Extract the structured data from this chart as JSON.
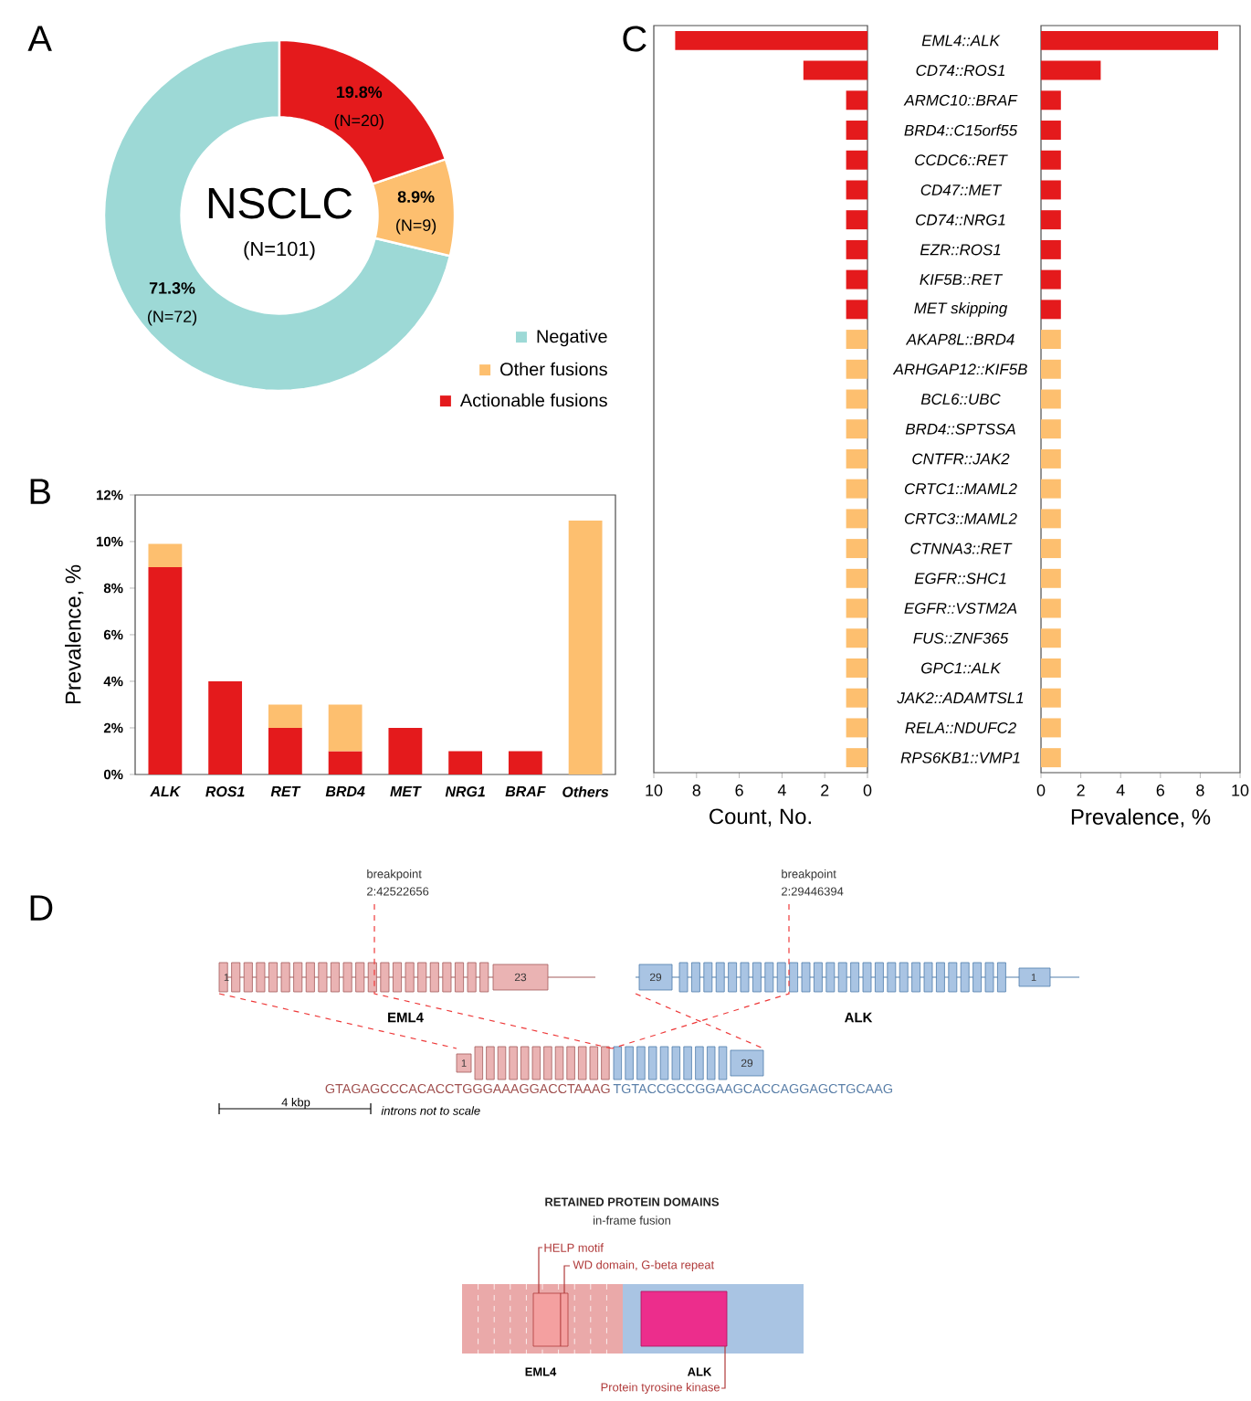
{
  "chart_data": [
    {
      "type": "donut",
      "title": "NSCLC",
      "subtitle": "(N=101)",
      "categories": [
        "Negative",
        "Other fusions",
        "Actionable fusions"
      ],
      "values": [
        71.3,
        8.9,
        19.8
      ],
      "colors": [
        "#9dd9d6",
        "#fdbf6f",
        "#e41a1c"
      ],
      "value_labels": [
        "71.3%",
        "8.9%",
        "19.8%"
      ],
      "legend": "bottom right",
      "annotations": [
        "A",
        "(N=72)",
        "(N=9)",
        "(N=20)"
      ]
    },
    {
      "type": "bar",
      "stacked": true,
      "categories": [
        "ALK",
        "ROS1",
        "RET",
        "BRD4",
        "MET",
        "NRG1",
        "BRAF",
        "Others"
      ],
      "series": [
        {
          "color": "#e41a1c",
          "values": [
            8.9,
            4.0,
            2.0,
            1.0,
            2.0,
            1.0,
            1.0,
            0
          ]
        },
        {
          "color": "#fdbf6f",
          "values": [
            1.0,
            0,
            1.0,
            2.0,
            0,
            0,
            0,
            10.9
          ]
        }
      ],
      "ylim": [
        0,
        12
      ],
      "yticks": [
        {
          "value": 0,
          "label": "0%"
        },
        {
          "value": 2,
          "label": "2%"
        },
        {
          "value": 4,
          "label": "4%"
        },
        {
          "value": 6,
          "label": "6%"
        },
        {
          "value": 8,
          "label": "8%"
        },
        {
          "value": 10,
          "label": "10%"
        },
        {
          "value": 12,
          "label": "12%"
        }
      ],
      "ylabel": "Prevalence, %",
      "annotations": [
        "B"
      ]
    },
    {
      "type": "bar",
      "orientation": "horizontal",
      "categories": [
        "EML4::ALK",
        "CD74::ROS1",
        "ARMC10::BRAF",
        "BRD4::C15orf55",
        "CCDC6::RET",
        "CD47::MET",
        "CD74::NRG1",
        "EZR::ROS1",
        "KIF5B::RET",
        "MET skipping",
        "AKAP8L::BRD4",
        "ARHGAP12::KIF5B",
        "BCL6::UBC",
        "BRD4::SPTSSA",
        "CNTFR::JAK2",
        "CRTC1::MAML2",
        "CRTC3::MAML2",
        "CTNNA3::RET",
        "EGFR::SHC1",
        "EGFR::VSTM2A",
        "FUS::ZNF365",
        "GPC1::ALK",
        "JAK2::ADAMTSL1",
        "RELA::NDUFC2",
        "RPS6KB1::VMP1"
      ],
      "values": [
        9,
        3,
        1,
        1,
        1,
        1,
        1,
        1,
        1,
        1,
        1,
        1,
        1,
        1,
        1,
        1,
        1,
        1,
        1,
        1,
        1,
        1,
        1,
        1,
        1
      ],
      "colors": [
        "#e41a1c",
        "#e41a1c",
        "#e41a1c",
        "#e41a1c",
        "#e41a1c",
        "#e41a1c",
        "#e41a1c",
        "#e41a1c",
        "#e41a1c",
        "#e41a1c",
        "#fdbf6f",
        "#fdbf6f",
        "#fdbf6f",
        "#fdbf6f",
        "#fdbf6f",
        "#fdbf6f",
        "#fdbf6f",
        "#fdbf6f",
        "#fdbf6f",
        "#fdbf6f",
        "#fdbf6f",
        "#fdbf6f",
        "#fdbf6f",
        "#fdbf6f",
        "#fdbf6f"
      ],
      "xlim": [
        10,
        0
      ],
      "xticks": [
        10,
        8,
        6,
        4,
        2,
        0
      ],
      "xlabel": "Count, No.",
      "annotations": [
        "C"
      ]
    },
    {
      "type": "bar",
      "orientation": "horizontal",
      "categories": [
        null,
        null,
        null,
        null,
        null,
        null,
        null,
        null,
        null,
        null,
        null,
        null,
        null,
        null,
        null,
        null,
        null,
        null,
        null,
        null,
        null,
        null,
        null,
        null,
        null
      ],
      "values": [
        8.9,
        3.0,
        1.0,
        1.0,
        1.0,
        1.0,
        1.0,
        1.0,
        1.0,
        1.0,
        1.0,
        1.0,
        1.0,
        1.0,
        1.0,
        1.0,
        1.0,
        1.0,
        1.0,
        1.0,
        1.0,
        1.0,
        1.0,
        1.0,
        1.0
      ],
      "colors": [
        "#e41a1c",
        "#e41a1c",
        "#e41a1c",
        "#e41a1c",
        "#e41a1c",
        "#e41a1c",
        "#e41a1c",
        "#e41a1c",
        "#e41a1c",
        "#e41a1c",
        "#fdbf6f",
        "#fdbf6f",
        "#fdbf6f",
        "#fdbf6f",
        "#fdbf6f",
        "#fdbf6f",
        "#fdbf6f",
        "#fdbf6f",
        "#fdbf6f",
        "#fdbf6f",
        "#fdbf6f",
        "#fdbf6f",
        "#fdbf6f",
        "#fdbf6f",
        "#fdbf6f"
      ],
      "xlim": [
        0,
        10
      ],
      "xticks": [
        0,
        2,
        4,
        6,
        8,
        10
      ],
      "xlabel": "Prevalence, %"
    },
    {
      "type": "other",
      "annotations": [
        "D",
        "breakpoint",
        "2:42522656",
        "breakpoint",
        "2:29446394",
        "EML4",
        "ALK",
        "1",
        "23",
        "29",
        "1",
        "1",
        "29",
        "GTAGAGCCCACACCTGGGAAAGGACCTAAAG",
        "TGTACCGCCGGAAGCACCAGGAGCTGCAAG",
        "4 kbp",
        "introns not to scale",
        "RETAINED PROTEIN DOMAINS",
        "in-frame fusion",
        "HELP motif",
        "WD domain, G-beta repeat",
        "EML4",
        "ALK",
        "Protein tyrosine kinase"
      ]
    }
  ]
}
